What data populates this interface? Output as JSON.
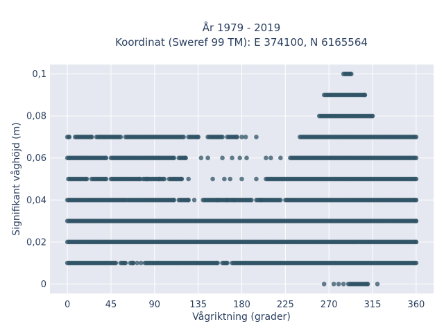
{
  "chart_data": {
    "type": "scatter",
    "title_lines": [
      "År 1979 - 2019",
      "Koordinat (Sweref 99 TM): E 374100, N 6165564"
    ],
    "xlabel": "Vågriktning (grader)",
    "ylabel": "Signifikant våghöjd (m)",
    "xlim": [
      -18,
      378
    ],
    "ylim": [
      -0.0045,
      0.1045
    ],
    "x_ticks": [
      0,
      45,
      90,
      135,
      180,
      225,
      270,
      315,
      360
    ],
    "x_tick_labels": [
      "0",
      "45",
      "90",
      "135",
      "180",
      "225",
      "270",
      "315",
      "360"
    ],
    "y_ticks": [
      0,
      0.02,
      0.04,
      0.06,
      0.08,
      0.1
    ],
    "y_tick_labels": [
      "0",
      "0,02",
      "0,04",
      "0,06",
      "0,08",
      "0,1"
    ],
    "grid": true,
    "marker_color": "#2f5366",
    "plot_bg": "#e5e8f0",
    "grid_color": "#ffffff",
    "series": [
      {
        "y": 0.1,
        "segments": [
          [
            285,
            293
          ]
        ],
        "points": []
      },
      {
        "y": 0.09,
        "segments": [
          [
            265,
            307
          ]
        ],
        "points": []
      },
      {
        "y": 0.08,
        "segments": [
          [
            260,
            315
          ]
        ],
        "points": []
      },
      {
        "y": 0.07,
        "segments": [
          [
            0,
            2
          ],
          [
            8,
            25
          ],
          [
            30,
            55
          ],
          [
            60,
            120
          ],
          [
            125,
            135
          ],
          [
            145,
            160
          ],
          [
            165,
            175
          ],
          [
            240,
            360
          ]
        ],
        "points": [
          180,
          184,
          195
        ]
      },
      {
        "y": 0.06,
        "segments": [
          [
            0,
            40
          ],
          [
            45,
            110
          ],
          [
            115,
            122
          ],
          [
            230,
            360
          ]
        ],
        "points": [
          138,
          145,
          160,
          170,
          178,
          185,
          205,
          210,
          220
        ]
      },
      {
        "y": 0.05,
        "segments": [
          [
            1,
            20
          ],
          [
            25,
            40
          ],
          [
            45,
            75
          ],
          [
            78,
            100
          ],
          [
            105,
            118
          ],
          [
            205,
            360
          ]
        ],
        "points": [
          82,
          95,
          125,
          150,
          162,
          168,
          180,
          195
        ]
      },
      {
        "y": 0.04,
        "segments": [
          [
            0,
            60
          ],
          [
            62,
            110
          ],
          [
            115,
            125
          ],
          [
            140,
            190
          ],
          [
            195,
            220
          ],
          [
            225,
            360
          ]
        ],
        "points": [
          131,
          155,
          165,
          172,
          200
        ]
      },
      {
        "y": 0.03,
        "segments": [
          [
            0,
            360
          ]
        ],
        "points": []
      },
      {
        "y": 0.02,
        "segments": [
          [
            0,
            360
          ]
        ],
        "points": []
      },
      {
        "y": 0.01,
        "segments": [
          [
            0,
            50
          ],
          [
            55,
            60
          ],
          [
            65,
            68
          ],
          [
            80,
            155
          ],
          [
            160,
            165
          ],
          [
            170,
            360
          ]
        ],
        "points": [
          72,
          76
        ]
      },
      {
        "y": 0,
        "segments": [
          [
            290,
            310
          ]
        ],
        "points": [
          265,
          275,
          280,
          285,
          320
        ]
      }
    ]
  }
}
